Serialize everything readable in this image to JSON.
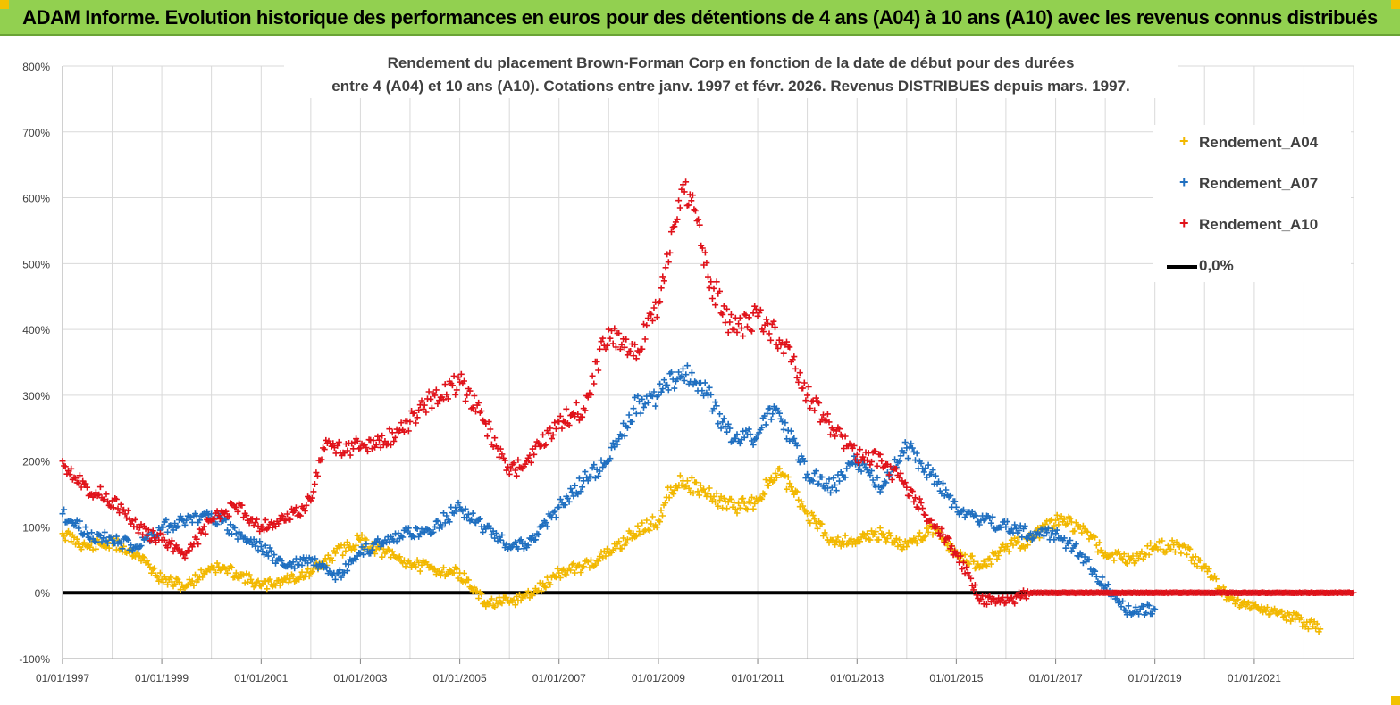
{
  "header": {
    "title": "ADAM Informe. Evolution historique des performances en euros pour des détentions de 4 ans (A04) à 10 ans (A10) avec les revenus connus distribués"
  },
  "colors": {
    "header_bg": "#92d050",
    "A04": "#f2b800",
    "A07": "#1f6fc0",
    "A10": "#e0121a",
    "zero_line": "#000000",
    "grid": "#d9d9d9"
  },
  "chart_data": {
    "type": "scatter",
    "title_lines": [
      "Rendement du placement Brown-Forman Corp en fonction de la date de début pour des durées",
      "entre 4 (A04) et 10 ans (A10).  Cotations entre janv. 1997 et févr. 2026. Revenus  DISTRIBUES depuis mars. 1997."
    ],
    "xlabel": "",
    "ylabel": "",
    "x_range": [
      "01/01/1997",
      "01/01/2023"
    ],
    "x_tick_labels": [
      "01/01/1997",
      "01/01/1999",
      "01/01/2001",
      "01/01/2003",
      "01/01/2005",
      "01/01/2007",
      "01/01/2009",
      "01/01/2011",
      "01/01/2013",
      "01/01/2015",
      "01/01/2017",
      "01/01/2019",
      "01/01/2021"
    ],
    "y_range": [
      -100,
      800
    ],
    "y_tick_labels": [
      "-100%",
      "0%",
      "100%",
      "200%",
      "300%",
      "400%",
      "500%",
      "600%",
      "700%",
      "800%"
    ],
    "grid": true,
    "legend_position": "top-right",
    "marker": "+",
    "series": [
      {
        "name": "Rendement_A04",
        "x": [
          "01/01/1997",
          "01/07/1997",
          "01/01/1998",
          "01/07/1998",
          "01/01/1999",
          "01/07/1999",
          "01/01/2000",
          "01/07/2000",
          "01/01/2001",
          "01/07/2001",
          "01/01/2002",
          "01/07/2002",
          "01/01/2003",
          "01/07/2003",
          "01/01/2004",
          "01/07/2004",
          "01/01/2005",
          "01/07/2005",
          "01/01/2006",
          "01/07/2006",
          "01/01/2007",
          "01/07/2007",
          "01/01/2008",
          "01/07/2008",
          "01/01/2009",
          "01/04/2009",
          "01/07/2009",
          "01/01/2010",
          "01/07/2010",
          "01/01/2011",
          "01/04/2011",
          "01/07/2011",
          "01/01/2012",
          "01/07/2012",
          "01/01/2013",
          "01/07/2013",
          "01/01/2014",
          "01/07/2014",
          "01/01/2015",
          "01/07/2015",
          "01/01/2016",
          "01/07/2016",
          "01/01/2017",
          "01/07/2017",
          "01/01/2018",
          "01/07/2018",
          "01/01/2019",
          "01/07/2019",
          "01/01/2020",
          "01/07/2020",
          "01/01/2021",
          "01/07/2021",
          "01/01/2022",
          "01/05/2022"
        ],
        "y": [
          90,
          70,
          75,
          60,
          20,
          10,
          40,
          30,
          10,
          20,
          30,
          60,
          80,
          60,
          45,
          35,
          30,
          -15,
          -15,
          0,
          30,
          40,
          60,
          90,
          110,
          160,
          170,
          150,
          130,
          140,
          170,
          180,
          120,
          80,
          80,
          90,
          70,
          100,
          60,
          40,
          70,
          80,
          110,
          100,
          60,
          50,
          70,
          70,
          40,
          -10,
          -20,
          -30,
          -45,
          -55
        ]
      },
      {
        "name": "Rendement_A07",
        "x": [
          "01/01/1997",
          "01/07/1997",
          "01/01/1998",
          "01/07/1998",
          "01/01/1999",
          "01/07/1999",
          "01/01/2000",
          "01/07/2000",
          "01/01/2001",
          "01/07/2001",
          "01/01/2002",
          "01/07/2002",
          "01/01/2003",
          "01/07/2003",
          "01/01/2004",
          "01/07/2004",
          "01/01/2005",
          "01/07/2005",
          "01/01/2006",
          "01/07/2006",
          "01/01/2007",
          "01/07/2007",
          "01/01/2008",
          "01/07/2008",
          "01/01/2009",
          "01/07/2009",
          "01/01/2010",
          "01/07/2010",
          "01/01/2011",
          "01/04/2011",
          "01/07/2011",
          "01/01/2012",
          "01/07/2012",
          "01/01/2013",
          "01/07/2013",
          "01/01/2014",
          "01/07/2014",
          "01/01/2015",
          "01/07/2015",
          "01/01/2016",
          "01/07/2016",
          "01/01/2017",
          "01/07/2017",
          "01/01/2018",
          "01/07/2018",
          "01/01/2019"
        ],
        "y": [
          120,
          90,
          80,
          70,
          100,
          110,
          120,
          90,
          70,
          40,
          50,
          20,
          60,
          80,
          90,
          100,
          130,
          100,
          70,
          80,
          130,
          170,
          200,
          280,
          300,
          340,
          300,
          230,
          240,
          280,
          260,
          180,
          160,
          200,
          160,
          220,
          180,
          130,
          110,
          100,
          90,
          90,
          60,
          10,
          -30,
          -25
        ]
      },
      {
        "name": "Rendement_A10",
        "x": [
          "01/01/1997",
          "01/07/1997",
          "01/01/1998",
          "01/07/1998",
          "01/01/1999",
          "01/07/1999",
          "01/01/2000",
          "01/07/2000",
          "01/01/2001",
          "01/07/2001",
          "01/01/2002",
          "01/04/2002",
          "01/01/2003",
          "01/07/2003",
          "01/01/2004",
          "01/07/2004",
          "01/01/2005",
          "01/07/2005",
          "01/01/2006",
          "01/07/2006",
          "01/01/2007",
          "01/07/2007",
          "01/01/2008",
          "01/07/2008",
          "01/01/2009",
          "01/07/2009",
          "01/10/2009",
          "01/01/2010",
          "01/07/2010",
          "01/01/2011",
          "01/07/2011",
          "01/01/2012",
          "01/07/2012",
          "01/01/2013",
          "01/07/2013",
          "01/01/2014",
          "01/07/2014",
          "01/01/2015",
          "01/07/2015",
          "01/01/2016",
          "01/07/2016",
          "01/01/2017",
          "01/01/2018",
          "01/01/2019",
          "01/01/2020",
          "01/01/2021",
          "01/01/2022",
          "01/01/2023"
        ],
        "y": [
          200,
          160,
          140,
          100,
          80,
          60,
          110,
          130,
          100,
          110,
          140,
          220,
          220,
          230,
          260,
          300,
          320,
          260,
          180,
          210,
          260,
          280,
          400,
          360,
          440,
          620,
          580,
          480,
          400,
          420,
          380,
          300,
          250,
          210,
          200,
          160,
          110,
          60,
          -10,
          -15,
          0,
          0,
          0,
          0,
          0,
          0,
          0,
          0
        ]
      },
      {
        "name": "0,0%",
        "x": [
          "01/01/1997",
          "01/01/2023"
        ],
        "y": [
          0,
          0
        ]
      }
    ]
  }
}
